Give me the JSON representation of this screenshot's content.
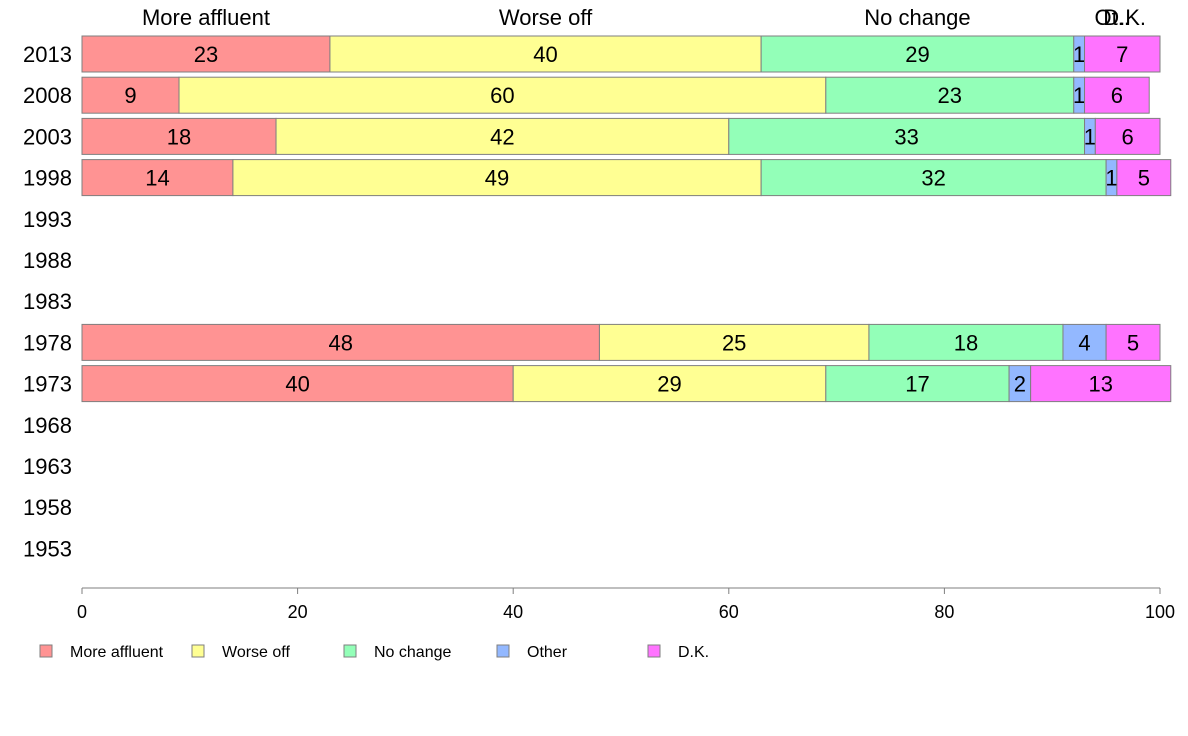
{
  "chart_data": {
    "type": "bar",
    "orientation": "horizontal",
    "stacked": true,
    "categories": [
      "2013",
      "2008",
      "2003",
      "1998",
      "1993",
      "1988",
      "1983",
      "1978",
      "1973",
      "1968",
      "1963",
      "1958",
      "1953"
    ],
    "series": [
      {
        "name": "More affluent",
        "color": "#ff9393",
        "values": [
          23,
          9,
          18,
          14,
          null,
          null,
          null,
          48,
          40,
          null,
          null,
          null,
          null
        ]
      },
      {
        "name": "Worse off",
        "color": "#ffff93",
        "values": [
          40,
          60,
          42,
          49,
          null,
          null,
          null,
          25,
          29,
          null,
          null,
          null,
          null
        ]
      },
      {
        "name": "No change",
        "color": "#93ffb8",
        "values": [
          29,
          23,
          33,
          32,
          null,
          null,
          null,
          18,
          17,
          null,
          null,
          null,
          null
        ]
      },
      {
        "name": "Other",
        "color": "#93b8ff",
        "values": [
          1,
          1,
          1,
          1,
          null,
          null,
          null,
          4,
          2,
          null,
          null,
          null,
          null
        ]
      },
      {
        "name": "D.K.",
        "color": "#ff73ff",
        "values": [
          7,
          6,
          6,
          5,
          null,
          null,
          null,
          5,
          13,
          null,
          null,
          null,
          null
        ]
      }
    ],
    "top_labels": [
      "More affluent",
      "Worse off",
      "No change",
      "Ot..",
      "D.K."
    ],
    "xlim": [
      0,
      100
    ],
    "xticks": [
      0,
      20,
      40,
      60,
      80,
      100
    ],
    "grid": false,
    "legend_position": "bottom-left"
  }
}
